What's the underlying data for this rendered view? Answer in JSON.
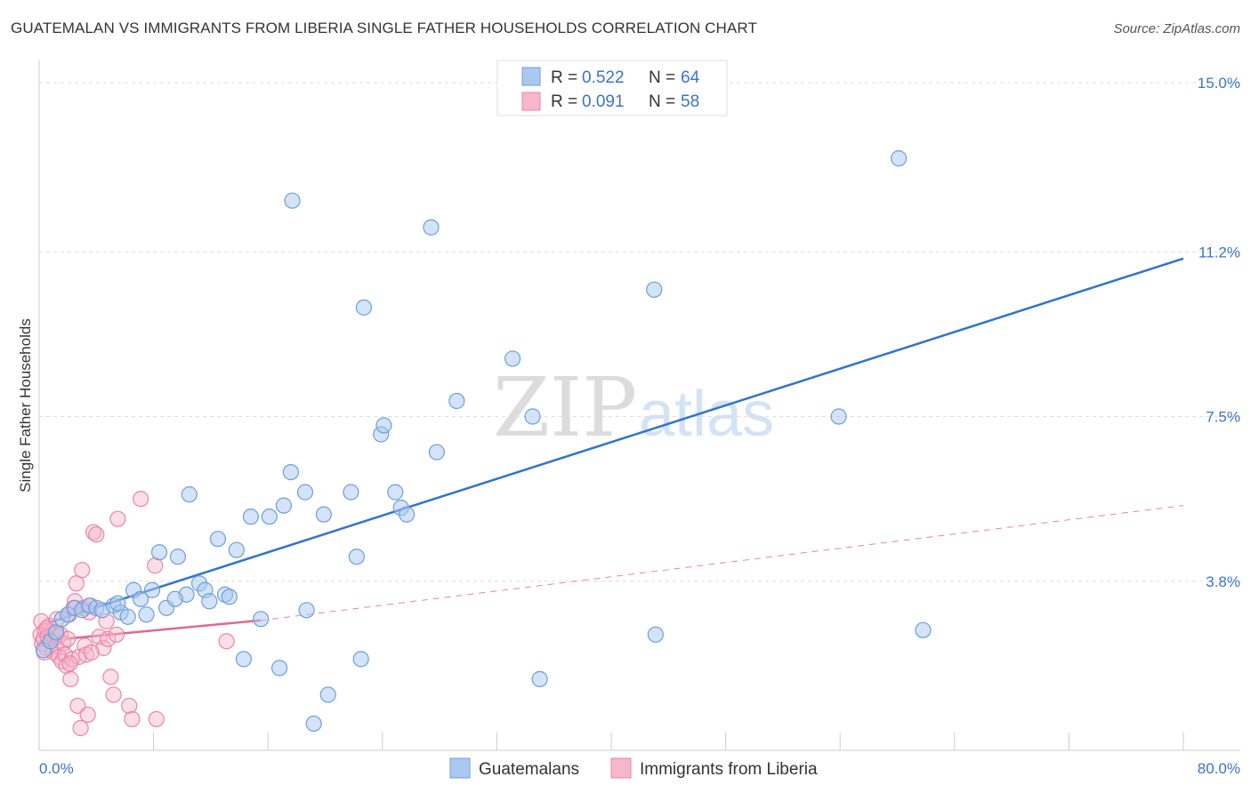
{
  "title": "GUATEMALAN VS IMMIGRANTS FROM LIBERIA SINGLE FATHER HOUSEHOLDS CORRELATION CHART",
  "source": "Source: ZipAtlas.com",
  "watermark": {
    "zip": "ZIP",
    "atlas": "atlas"
  },
  "colors": {
    "blue_fill": "#a9c8ef",
    "blue_stroke": "#6d9fd9",
    "blue_line": "#2f74d0",
    "pink_fill": "#f6b6cb",
    "pink_stroke": "#e985a6",
    "pink_line": "#e5658e",
    "grid": "#dddddd",
    "axis_text": "#3a74c9"
  },
  "legend": {
    "rows": [
      {
        "r_label": "R = ",
        "r_value": "0.522",
        "n_label": "N = ",
        "n_value": "64",
        "series": "blue"
      },
      {
        "r_label": "R = ",
        "r_value": "0.091",
        "n_label": "N = ",
        "n_value": "58",
        "series": "pink"
      }
    ]
  },
  "chart_data": {
    "type": "scatter",
    "title": "GUATEMALAN VS IMMIGRANTS FROM LIBERIA SINGLE FATHER HOUSEHOLDS CORRELATION CHART",
    "xlabel": "",
    "ylabel": "Single Father Households",
    "xlim": [
      0,
      80
    ],
    "ylim": [
      0,
      15.5
    ],
    "x_tick_labels": [
      "0.0%",
      "80.0%"
    ],
    "y_ticks": [
      3.8,
      7.5,
      11.2,
      15.0
    ],
    "y_tick_labels": [
      "3.8%",
      "7.5%",
      "11.2%",
      "15.0%"
    ],
    "legend_position": "top-center",
    "series": [
      {
        "name": "Guatemalans",
        "color": "blue",
        "R": 0.522,
        "N": 64,
        "trend": {
          "x": [
            0,
            80
          ],
          "y": [
            2.8,
            11.05
          ],
          "style": "solid"
        },
        "points": [
          [
            0.3,
            2.25
          ],
          [
            0.8,
            2.45
          ],
          [
            1.2,
            2.65
          ],
          [
            1.6,
            2.95
          ],
          [
            2.0,
            3.05
          ],
          [
            2.5,
            3.2
          ],
          [
            3.0,
            3.15
          ],
          [
            3.5,
            3.25
          ],
          [
            4.0,
            3.2
          ],
          [
            4.4,
            3.15
          ],
          [
            5.2,
            3.25
          ],
          [
            5.7,
            3.1
          ],
          [
            6.2,
            3.0
          ],
          [
            6.6,
            3.6
          ],
          [
            7.1,
            3.4
          ],
          [
            7.5,
            3.05
          ],
          [
            7.9,
            3.6
          ],
          [
            8.4,
            4.45
          ],
          [
            8.9,
            3.2
          ],
          [
            9.7,
            4.35
          ],
          [
            10.3,
            3.5
          ],
          [
            10.5,
            5.75
          ],
          [
            11.2,
            3.75
          ],
          [
            11.6,
            3.6
          ],
          [
            11.9,
            3.35
          ],
          [
            12.5,
            4.75
          ],
          [
            13.0,
            3.5
          ],
          [
            13.3,
            3.45
          ],
          [
            13.8,
            4.5
          ],
          [
            14.3,
            2.05
          ],
          [
            14.8,
            5.25
          ],
          [
            15.5,
            2.95
          ],
          [
            16.1,
            5.25
          ],
          [
            16.8,
            1.85
          ],
          [
            17.1,
            5.5
          ],
          [
            17.6,
            6.25
          ],
          [
            17.7,
            12.35
          ],
          [
            18.6,
            5.8
          ],
          [
            18.7,
            3.15
          ],
          [
            19.2,
            0.6
          ],
          [
            19.9,
            5.3
          ],
          [
            20.2,
            1.25
          ],
          [
            21.8,
            5.8
          ],
          [
            22.2,
            4.35
          ],
          [
            22.5,
            2.05
          ],
          [
            22.7,
            9.95
          ],
          [
            23.9,
            7.1
          ],
          [
            24.1,
            7.3
          ],
          [
            24.9,
            5.8
          ],
          [
            25.3,
            5.45
          ],
          [
            25.7,
            5.3
          ],
          [
            27.4,
            11.75
          ],
          [
            27.8,
            6.7
          ],
          [
            29.2,
            7.85
          ],
          [
            33.1,
            8.8
          ],
          [
            34.5,
            7.5
          ],
          [
            35.0,
            1.6
          ],
          [
            43.0,
            10.35
          ],
          [
            43.1,
            2.6
          ],
          [
            55.9,
            7.5
          ],
          [
            60.1,
            13.3
          ],
          [
            61.8,
            2.7
          ],
          [
            5.5,
            3.3
          ],
          [
            9.5,
            3.4
          ]
        ]
      },
      {
        "name": "Immigrants from Liberia",
        "color": "pink",
        "R": 0.091,
        "N": 58,
        "trend": {
          "x": [
            0,
            15.5
          ],
          "y": [
            2.45,
            2.92
          ],
          "style": "solid"
        },
        "trend_extended": {
          "x": [
            15.5,
            80
          ],
          "y": [
            2.92,
            5.5
          ],
          "style": "dashed"
        },
        "points": [
          [
            0.1,
            2.6
          ],
          [
            0.2,
            2.4
          ],
          [
            0.3,
            2.5
          ],
          [
            0.4,
            2.7
          ],
          [
            0.5,
            2.3
          ],
          [
            0.6,
            2.55
          ],
          [
            0.7,
            2.8
          ],
          [
            0.8,
            2.45
          ],
          [
            0.9,
            2.6
          ],
          [
            1.0,
            2.2
          ],
          [
            1.1,
            2.65
          ],
          [
            1.2,
            2.35
          ],
          [
            1.3,
            2.55
          ],
          [
            1.4,
            2.1
          ],
          [
            1.5,
            2.6
          ],
          [
            1.6,
            2.0
          ],
          [
            1.7,
            2.4
          ],
          [
            1.8,
            2.15
          ],
          [
            1.9,
            1.9
          ],
          [
            2.0,
            2.5
          ],
          [
            2.1,
            3.05
          ],
          [
            2.2,
            1.6
          ],
          [
            2.3,
            2.05
          ],
          [
            2.4,
            3.2
          ],
          [
            2.5,
            3.35
          ],
          [
            2.6,
            3.75
          ],
          [
            2.7,
            1.0
          ],
          [
            2.8,
            2.1
          ],
          [
            2.9,
            0.5
          ],
          [
            3.0,
            4.05
          ],
          [
            3.1,
            3.2
          ],
          [
            3.2,
            2.35
          ],
          [
            3.3,
            2.15
          ],
          [
            3.4,
            0.8
          ],
          [
            3.5,
            3.1
          ],
          [
            3.6,
            3.25
          ],
          [
            3.8,
            4.9
          ],
          [
            4.0,
            4.85
          ],
          [
            4.2,
            2.55
          ],
          [
            4.5,
            2.3
          ],
          [
            4.7,
            2.9
          ],
          [
            4.8,
            2.5
          ],
          [
            5.0,
            1.65
          ],
          [
            5.2,
            1.25
          ],
          [
            5.4,
            2.6
          ],
          [
            5.5,
            5.2
          ],
          [
            6.3,
            1.0
          ],
          [
            6.5,
            0.7
          ],
          [
            7.1,
            5.65
          ],
          [
            8.1,
            4.15
          ],
          [
            8.2,
            0.7
          ],
          [
            13.1,
            2.45
          ],
          [
            0.15,
            2.9
          ],
          [
            0.35,
            2.2
          ],
          [
            0.55,
            2.75
          ],
          [
            1.25,
            2.95
          ],
          [
            2.15,
            1.95
          ],
          [
            3.65,
            2.2
          ]
        ]
      }
    ]
  },
  "bottom_legend": [
    {
      "label": "Guatemalans",
      "series": "blue"
    },
    {
      "label": "Immigrants from Liberia",
      "series": "pink"
    }
  ]
}
